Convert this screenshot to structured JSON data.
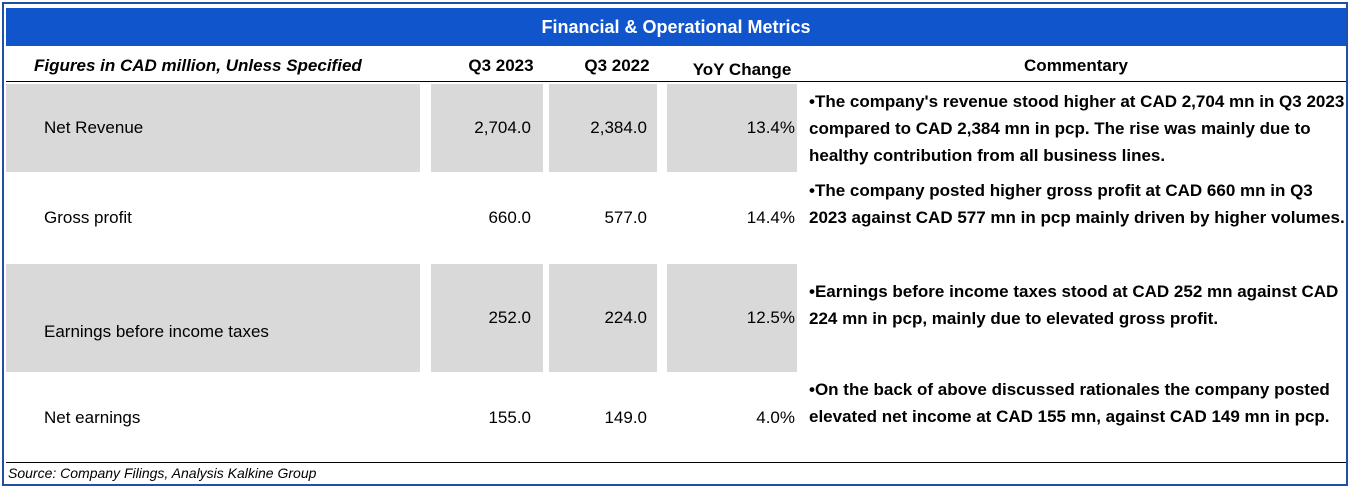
{
  "title": "Financial & Operational Metrics",
  "headers": {
    "label": "Figures in CAD million, Unless Specified",
    "q3_2023": "Q3 2023",
    "q3_2022": "Q3 2022",
    "yoy": "YoY Change",
    "commentary": "Commentary"
  },
  "rows": [
    {
      "label": "Net Revenue",
      "q3_2023": "2,704.0",
      "q3_2022": "2,384.0",
      "yoy": "13.4%",
      "commentary": "•The company's revenue stood higher at CAD 2,704 mn in Q3 2023 compared to CAD 2,384 mn in pcp. The rise was mainly due to healthy contribution from all business lines."
    },
    {
      "label": "Gross profit",
      "q3_2023": "660.0",
      "q3_2022": "577.0",
      "yoy": "14.4%",
      "commentary": "•The company posted higher gross profit at CAD 660 mn in Q3 2023 against CAD 577 mn in pcp mainly driven by higher volumes."
    },
    {
      "label": "Earnings before income taxes",
      "q3_2023": "252.0",
      "q3_2022": "224.0",
      "yoy": "12.5%",
      "commentary": "•Earnings before income taxes stood at CAD 252 mn against CAD 224 mn in pcp, mainly due to elevated gross profit."
    },
    {
      "label": "Net earnings",
      "q3_2023": "155.0",
      "q3_2022": "149.0",
      "yoy": "4.0%",
      "commentary": "•On the back of above discussed rationales the company posted elevated net income at CAD 155 mn, against CAD 149 mn in pcp."
    }
  ],
  "source": "Source: Company Filings, Analysis Kalkine Group"
}
